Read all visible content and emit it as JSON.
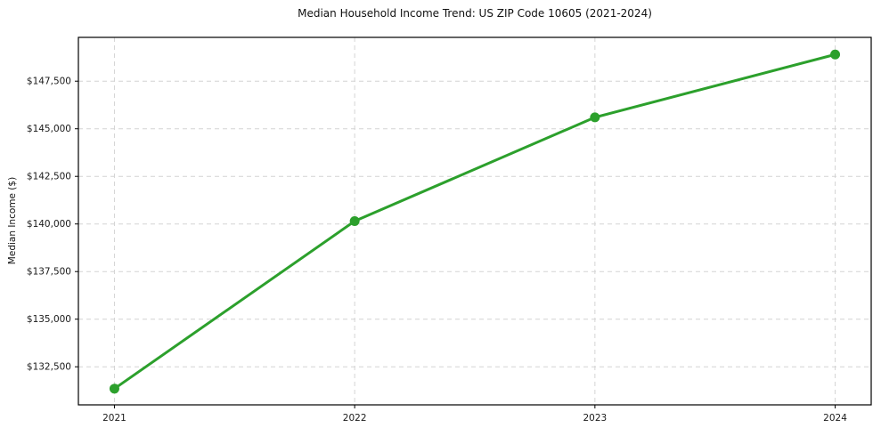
{
  "figure": {
    "title": "Median Household Income Trend: US ZIP Code 10605 (2021-2024)",
    "ylabel": "Median Income ($)"
  },
  "chart_data": {
    "type": "line",
    "title": "Median Household Income Trend: US ZIP Code 10605 (2021-2024)",
    "xlabel": "",
    "ylabel": "Median Income ($)",
    "categories": [
      "2021",
      "2022",
      "2023",
      "2024"
    ],
    "x": [
      2021,
      2022,
      2023,
      2024
    ],
    "series": [
      {
        "name": "Median Household Income",
        "values": [
          131350,
          140150,
          145600,
          148900
        ]
      }
    ],
    "xlim": [
      2020.85,
      2024.15
    ],
    "ylim": [
      130500,
      149800
    ],
    "yticks": [
      {
        "value": 132500,
        "label": "$132,500"
      },
      {
        "value": 135000,
        "label": "$135,000"
      },
      {
        "value": 137500,
        "label": "$137,500"
      },
      {
        "value": 140000,
        "label": "$140,000"
      },
      {
        "value": 142500,
        "label": "$142,500"
      },
      {
        "value": 145000,
        "label": "$145,000"
      },
      {
        "value": 147500,
        "label": "$147,500"
      }
    ],
    "grid": true,
    "grid_style": "dashed",
    "legend": false,
    "marker": "circle",
    "style": {
      "line_color": "#2ca02c",
      "marker_color": "#2ca02c",
      "grid_color": "#d4d4d4",
      "spine_color": "#000000",
      "tick_color": "#000000",
      "text_color": "#1a1a1a",
      "background": "#ffffff"
    }
  }
}
